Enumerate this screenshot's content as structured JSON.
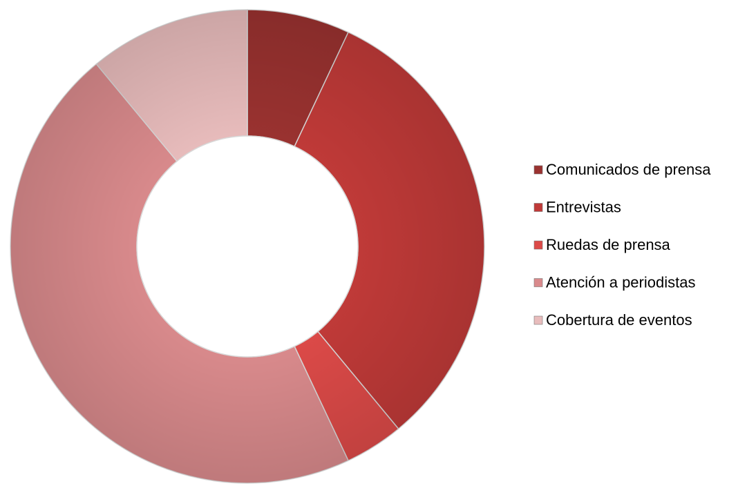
{
  "chart_data": {
    "type": "donut",
    "categories": [
      "Comunicados de prensa",
      "Entrevistas",
      "Ruedas de prensa",
      "Atención a periodistas",
      "Cobertura de eventos"
    ],
    "values": [
      7,
      32,
      4,
      46,
      11
    ],
    "colors": [
      "#9a3230",
      "#c03a38",
      "#dc4a48",
      "#d98a8c",
      "#e8bcbc"
    ],
    "legend": "right"
  }
}
